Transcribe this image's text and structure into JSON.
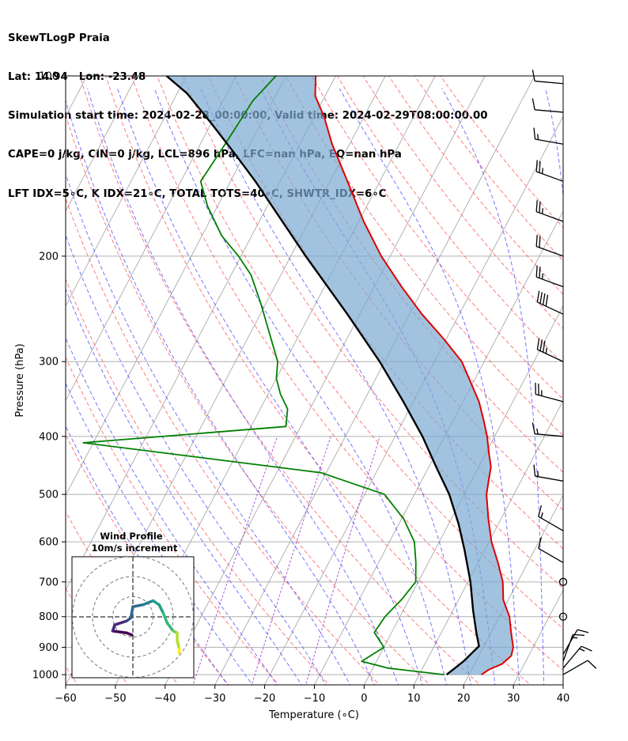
{
  "header": {
    "line1": "SkewTLogP Praia",
    "line2": "Lat: 14.94   Lon: -23.48",
    "line3": "Simulation start time: 2024-02-28_00:00:00, Valid time: 2024-02-29T08:00:00.00",
    "line4": "CAPE=0 j/kg, CIN=0 j/kg, LCL=896 hPa, LFC=nan hPa, EQ=nan hPa",
    "line5": "LFT IDX=5∘C, K IDX=21∘C, TOTAL TOTS=40∘C, SHWTR_IDX=6∘C"
  },
  "chart_data": {
    "type": "skew-t log-p",
    "xlabel": "Temperature (∘C)",
    "ylabel": "Pressure (hPa)",
    "xlim": [
      -60,
      40
    ],
    "ylim": [
      1040,
      100
    ],
    "x_ticks": [
      -60,
      -50,
      -40,
      -30,
      -20,
      -10,
      0,
      10,
      20,
      30,
      40
    ],
    "x_tick_labels": [
      "−60",
      "−50",
      "−40",
      "−30",
      "−20",
      "−10",
      "0",
      "10",
      "20",
      "30",
      "40"
    ],
    "p_ticks": [
      1000,
      900,
      800,
      700,
      600,
      500,
      400,
      300,
      200,
      100
    ],
    "p_tick_labels": [
      "1000",
      "900",
      "800",
      "700",
      "600",
      "500",
      "400",
      "300",
      "200",
      "100"
    ],
    "y_scale": "log",
    "grid": true,
    "colors": {
      "temperature": "#e00000",
      "dewpoint": "#008000",
      "parcel": "#000000",
      "cape_fill": "#7aaad2",
      "dry_adiabats": "#ff5050",
      "moist_adiabats": "#3c3cff",
      "mixing_ratio": "#9933cc",
      "isotherms": "#aaaaaa"
    },
    "series": [
      {
        "name": "temperature",
        "points": [
          [
            22.5,
            1000
          ],
          [
            23.5,
            980
          ],
          [
            25.5,
            960
          ],
          [
            26.5,
            930
          ],
          [
            26.0,
            900
          ],
          [
            24.0,
            850
          ],
          [
            22.0,
            800
          ],
          [
            19.0,
            750
          ],
          [
            17.0,
            700
          ],
          [
            14.0,
            650
          ],
          [
            10.5,
            600
          ],
          [
            7.5,
            550
          ],
          [
            4.5,
            500
          ],
          [
            3.5,
            475
          ],
          [
            2.5,
            450
          ],
          [
            0.5,
            425
          ],
          [
            -1.5,
            400
          ],
          [
            -4.0,
            375
          ],
          [
            -6.8,
            350
          ],
          [
            -10.5,
            325
          ],
          [
            -14.5,
            300
          ],
          [
            -20.5,
            275
          ],
          [
            -27.5,
            250
          ],
          [
            -34.5,
            225
          ],
          [
            -41.8,
            200
          ],
          [
            -49.0,
            175
          ],
          [
            -56.5,
            150
          ],
          [
            -63.5,
            130
          ],
          [
            -68.0,
            117
          ],
          [
            -72.0,
            108
          ],
          [
            -74.0,
            100
          ]
        ]
      },
      {
        "name": "dewpoint",
        "points": [
          [
            15.0,
            1000
          ],
          [
            3.0,
            975
          ],
          [
            -3.0,
            950
          ],
          [
            0.0,
            900
          ],
          [
            -3.5,
            850
          ],
          [
            -3.0,
            800
          ],
          [
            -1.5,
            750
          ],
          [
            -0.5,
            700
          ],
          [
            -2.5,
            650
          ],
          [
            -5.0,
            600
          ],
          [
            -9.5,
            550
          ],
          [
            -16.0,
            500
          ],
          [
            -31.0,
            460
          ],
          [
            -82.0,
            410
          ],
          [
            -43.0,
            385
          ],
          [
            -44.5,
            360
          ],
          [
            -47.5,
            340
          ],
          [
            -50.0,
            320
          ],
          [
            -51.5,
            300
          ],
          [
            -56.0,
            270
          ],
          [
            -61.0,
            240
          ],
          [
            -66.0,
            215
          ],
          [
            -70.5,
            200
          ],
          [
            -76.0,
            185
          ],
          [
            -82.0,
            165
          ],
          [
            -86.0,
            150
          ],
          [
            -85.0,
            130
          ],
          [
            -84.0,
            110
          ],
          [
            -82.0,
            100
          ]
        ]
      },
      {
        "name": "parcel",
        "points": [
          [
            15.5,
            1000
          ],
          [
            17.5,
            950
          ],
          [
            19.0,
            896
          ],
          [
            17.0,
            850
          ],
          [
            14.0,
            780
          ],
          [
            10.5,
            700
          ],
          [
            6.0,
            620
          ],
          [
            2.0,
            560
          ],
          [
            -3.0,
            500
          ],
          [
            -8.5,
            450
          ],
          [
            -14.5,
            400
          ],
          [
            -22.0,
            350
          ],
          [
            -31.0,
            300
          ],
          [
            -42.5,
            250
          ],
          [
            -57.0,
            200
          ],
          [
            -75.0,
            150
          ],
          [
            -82.0,
            135
          ],
          [
            -90.0,
            120
          ],
          [
            -98.0,
            107
          ],
          [
            -104.0,
            100
          ]
        ]
      }
    ],
    "wind_barbs": [
      {
        "p": 1000,
        "speed_kt": 10,
        "dir_deg": 60
      },
      {
        "p": 975,
        "speed_kt": 15,
        "dir_deg": 40
      },
      {
        "p": 950,
        "speed_kt": 15,
        "dir_deg": 20
      },
      {
        "p": 925,
        "speed_kt": 10,
        "dir_deg": 30
      },
      {
        "p": 800,
        "speed_kt": 0,
        "dir_deg": 0
      },
      {
        "p": 700,
        "speed_kt": 0,
        "dir_deg": 0
      },
      {
        "p": 650,
        "speed_kt": 10,
        "dir_deg": 300
      },
      {
        "p": 575,
        "speed_kt": 15,
        "dir_deg": 300
      },
      {
        "p": 475,
        "speed_kt": 15,
        "dir_deg": 280
      },
      {
        "p": 400,
        "speed_kt": 15,
        "dir_deg": 275
      },
      {
        "p": 350,
        "speed_kt": 25,
        "dir_deg": 285
      },
      {
        "p": 300,
        "speed_kt": 35,
        "dir_deg": 295
      },
      {
        "p": 250,
        "speed_kt": 40,
        "dir_deg": 295
      },
      {
        "p": 225,
        "speed_kt": 25,
        "dir_deg": 290
      },
      {
        "p": 200,
        "speed_kt": 20,
        "dir_deg": 290
      },
      {
        "p": 175,
        "speed_kt": 25,
        "dir_deg": 290
      },
      {
        "p": 150,
        "speed_kt": 25,
        "dir_deg": 290
      },
      {
        "p": 130,
        "speed_kt": 15,
        "dir_deg": 280
      },
      {
        "p": 115,
        "speed_kt": 10,
        "dir_deg": 275
      },
      {
        "p": 103,
        "speed_kt": 10,
        "dir_deg": 275
      }
    ],
    "hodograph": {
      "title": "Wind Profile",
      "subtitle": "10m/s increment",
      "rings_ms": [
        10,
        20,
        30
      ],
      "points_uv": [
        [
          -0.5,
          -9
        ],
        [
          -3,
          -8
        ],
        [
          -10,
          -7
        ],
        [
          -9,
          -4
        ],
        [
          -3,
          -2
        ],
        [
          -1,
          -0.5
        ],
        [
          0,
          5
        ],
        [
          5,
          6
        ],
        [
          10,
          8
        ],
        [
          13,
          6
        ],
        [
          15,
          2
        ],
        [
          17,
          -3
        ],
        [
          20,
          -7
        ],
        [
          22,
          -8
        ],
        [
          22,
          -12
        ],
        [
          23,
          -16
        ],
        [
          23,
          -18
        ]
      ]
    }
  }
}
